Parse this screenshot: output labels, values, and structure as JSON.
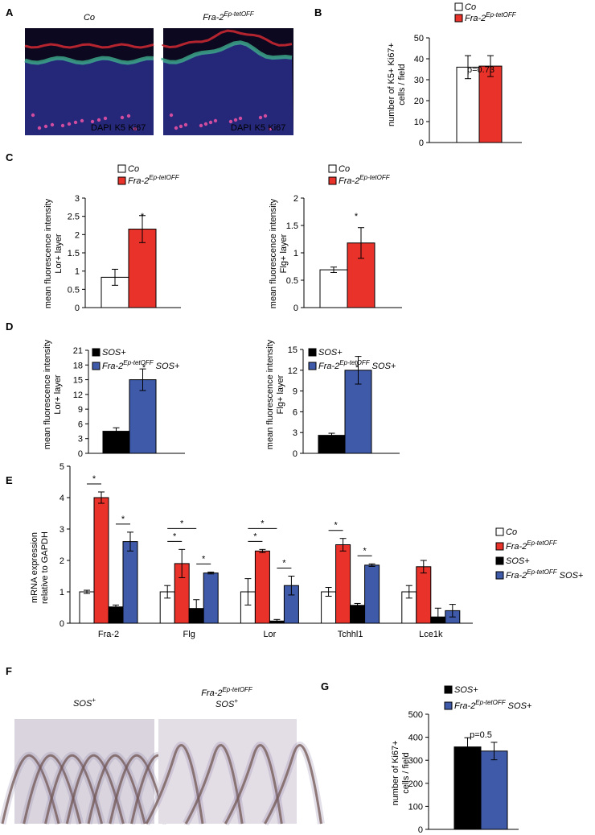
{
  "colors": {
    "co": "#ffffff",
    "fra2": "#e8322a",
    "sos": "#000000",
    "fra2sos": "#3e5aa8"
  },
  "panelA": {
    "letter": "A",
    "titles": [
      "Co",
      "Fra-2Ep-tetOFF"
    ],
    "stains": [
      {
        "t": "DAPI",
        "c": "#4a7ee0"
      },
      {
        "t": "K5",
        "c": "#bfe15a"
      },
      {
        "t": "Ki67",
        "c": "#e34fa8"
      }
    ]
  },
  "panelF": {
    "letter": "F",
    "titles": [
      "SOS+",
      "Fra-2Ep-tetOFF SOS+"
    ]
  },
  "chart_data": [
    {
      "id": "B",
      "type": "bar",
      "letter": "B",
      "ylabel": "number of K5+ Ki67+ cells / field",
      "ylim": [
        0,
        50
      ],
      "ticks": [
        0,
        10,
        20,
        30,
        40,
        50
      ],
      "legend": [
        "Co",
        "Fra-2Ep-tetOFF"
      ],
      "annotation": "p=0.73",
      "series": [
        {
          "name": "Co",
          "color": "co",
          "values": [
            36
          ],
          "err": [
            5.5
          ]
        },
        {
          "name": "Fra-2Ep-tetOFF",
          "color": "fra2",
          "values": [
            36.5
          ],
          "err": [
            5
          ]
        }
      ]
    },
    {
      "id": "C1",
      "type": "bar",
      "letter": "C",
      "ylabel": "mean fluorescence intensity Lor+ layer",
      "ylim": [
        0,
        3
      ],
      "ticks": [
        0,
        0.5,
        1,
        1.5,
        2,
        2.5,
        3
      ],
      "legend": [
        "Co",
        "Fra-2Ep-tetOFF"
      ],
      "annotation": "*",
      "series": [
        {
          "name": "Co",
          "color": "co",
          "values": [
            0.83
          ],
          "err": [
            0.22
          ]
        },
        {
          "name": "Fra-2Ep-tetOFF",
          "color": "fra2",
          "values": [
            2.15
          ],
          "err": [
            0.37
          ]
        }
      ]
    },
    {
      "id": "C2",
      "type": "bar",
      "ylabel": "mean fluorescence intensity Flg+ layer",
      "ylim": [
        0,
        2
      ],
      "ticks": [
        0,
        0.5,
        1,
        1.5,
        2
      ],
      "legend": [
        "Co",
        "Fra-2Ep-tetOFF"
      ],
      "annotation": "*",
      "series": [
        {
          "name": "Co",
          "color": "co",
          "values": [
            0.69
          ],
          "err": [
            0.05
          ]
        },
        {
          "name": "Fra-2Ep-tetOFF",
          "color": "fra2",
          "values": [
            1.18
          ],
          "err": [
            0.28
          ]
        }
      ]
    },
    {
      "id": "D1",
      "type": "bar",
      "letter": "D",
      "ylabel": "mean fluorescence intensity Lor+ layer",
      "ylim": [
        0,
        21
      ],
      "ticks": [
        0,
        3,
        6,
        9,
        12,
        15,
        18,
        21
      ],
      "legend": [
        "SOS+",
        "Fra-2Ep-tetOFF SOS+"
      ],
      "annotation": "*",
      "series": [
        {
          "name": "SOS+",
          "color": "sos",
          "values": [
            4.5
          ],
          "err": [
            0.7
          ]
        },
        {
          "name": "Fra-2Ep-tetOFF SOS+",
          "color": "fra2sos",
          "values": [
            15
          ],
          "err": [
            2.2
          ]
        }
      ]
    },
    {
      "id": "D2",
      "type": "bar",
      "ylabel": "mean fluorescence intensity Flg+ layer",
      "ylim": [
        0,
        15
      ],
      "ticks": [
        0,
        3,
        6,
        9,
        12,
        15
      ],
      "legend": [
        "SOS+",
        "Fra-2Ep-tetOFF SOS+"
      ],
      "annotation": "*",
      "series": [
        {
          "name": "SOS+",
          "color": "sos",
          "values": [
            2.6
          ],
          "err": [
            0.3
          ]
        },
        {
          "name": "Fra-2Ep-tetOFF SOS+",
          "color": "fra2sos",
          "values": [
            12
          ],
          "err": [
            2
          ]
        }
      ]
    },
    {
      "id": "E",
      "type": "bar",
      "letter": "E",
      "ylabel": "mRNA expression relative to GAPDH",
      "ylim": [
        0,
        5
      ],
      "ticks": [
        0,
        1,
        2,
        3,
        4,
        5
      ],
      "categories": [
        "Fra-2",
        "Flg",
        "Lor",
        "Tchhl1",
        "Lce1k"
      ],
      "legend": [
        "Co",
        "Fra-2Ep-tetOFF",
        "SOS+",
        "Fra-2Ep-tetOFF SOS+"
      ],
      "series": [
        {
          "name": "Co",
          "color": "co",
          "values": [
            1,
            1,
            1,
            1,
            1
          ],
          "err": [
            0.05,
            0.2,
            0.42,
            0.14,
            0.2
          ]
        },
        {
          "name": "Fra-2Ep-tetOFF",
          "color": "fra2",
          "values": [
            4,
            1.9,
            2.3,
            2.5,
            1.8
          ],
          "err": [
            0.18,
            0.45,
            0.05,
            0.2,
            0.2
          ]
        },
        {
          "name": "SOS+",
          "color": "sos",
          "values": [
            0.52,
            0.47,
            0.07,
            0.57,
            0.2
          ],
          "err": [
            0.06,
            0.28,
            0.05,
            0.06,
            0.28
          ]
        },
        {
          "name": "Fra-2Ep-tetOFF SOS+",
          "color": "fra2sos",
          "values": [
            2.6,
            1.6,
            1.2,
            1.85,
            0.4
          ],
          "err": [
            0.3,
            0.03,
            0.3,
            0.04,
            0.2
          ]
        }
      ]
    },
    {
      "id": "G",
      "type": "bar",
      "letter": "G",
      "ylabel": "number of Ki67+ cells / field",
      "ylim": [
        0,
        500
      ],
      "ticks": [
        0,
        100,
        200,
        300,
        400,
        500
      ],
      "legend": [
        "SOS+",
        "Fra-2Ep-tetOFF SOS+"
      ],
      "annotation": "p=0.5",
      "series": [
        {
          "name": "SOS+",
          "color": "sos",
          "values": [
            358
          ],
          "err": [
            40
          ]
        },
        {
          "name": "Fra-2Ep-tetOFF SOS+",
          "color": "fra2sos",
          "values": [
            340
          ],
          "err": [
            38
          ]
        }
      ]
    }
  ]
}
